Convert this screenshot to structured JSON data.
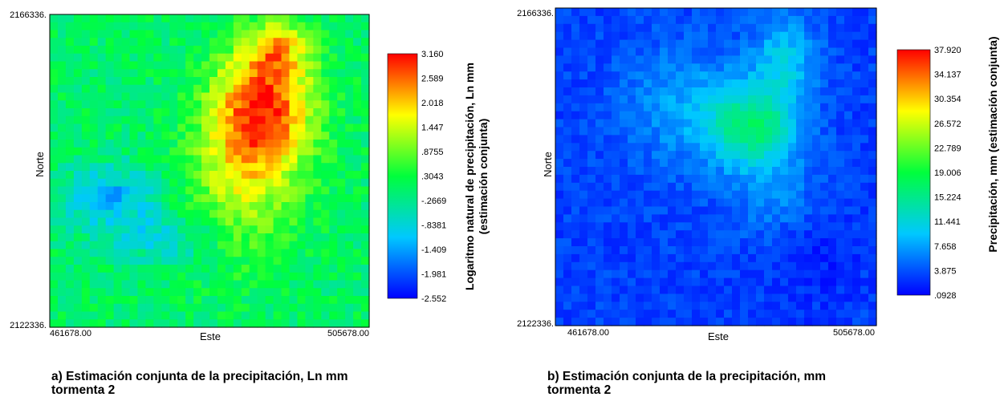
{
  "chart_data": [
    {
      "type": "heatmap",
      "xlabel": "Este",
      "ylabel": "Norte",
      "xlim": [
        461678.0,
        505678.0
      ],
      "ylim": [
        2122336,
        2166336
      ],
      "x_tick_labels": [
        "461678.00",
        "505678.00"
      ],
      "y_tick_labels": [
        "2166336.",
        "2122336."
      ],
      "grid": false,
      "colorbar": {
        "title_line1": "Logaritmo natural de precipitación, Ln mm",
        "title_line2": "(estimación conjunta)",
        "range": [
          -2.552,
          3.16
        ],
        "tick_labels": [
          "3.160",
          "2.589",
          "2.018",
          "1.447",
          ".8755",
          ".3043",
          "-.2669",
          "-.8381",
          "-1.409",
          "-1.981",
          "-2.552"
        ],
        "colormap": [
          "#0000ff",
          "#00c8ff",
          "#00ff3c",
          "#ffff00",
          "#ff0000"
        ]
      },
      "caption_line1": "a) Estimación conjunta de la precipitación, Ln mm",
      "caption_line2": "tormenta 2"
    },
    {
      "type": "heatmap",
      "xlabel": "Este",
      "ylabel": "Norte",
      "xlim": [
        461678.0,
        505678.0
      ],
      "ylim": [
        2122336,
        2166336
      ],
      "x_tick_labels": [
        "461678.00",
        "505678.00"
      ],
      "y_tick_labels": [
        "2166336.",
        "2122336."
      ],
      "grid": false,
      "colorbar": {
        "title_line1": "Precipitación, mm  (estimación conjunta)",
        "range": [
          0.0928,
          37.92
        ],
        "tick_labels": [
          "37.920",
          "34.137",
          "30.354",
          "26.572",
          "22.789",
          "19.006",
          "15.224",
          "11.441",
          "7.658",
          "3.875",
          ".0928"
        ],
        "colormap": [
          "#0000ff",
          "#00c8ff",
          "#00ff3c",
          "#ffff00",
          "#ff0000"
        ]
      },
      "caption_line1": "b) Estimación conjunta de la precipitación, mm",
      "caption_line2": "tormenta 2"
    }
  ]
}
